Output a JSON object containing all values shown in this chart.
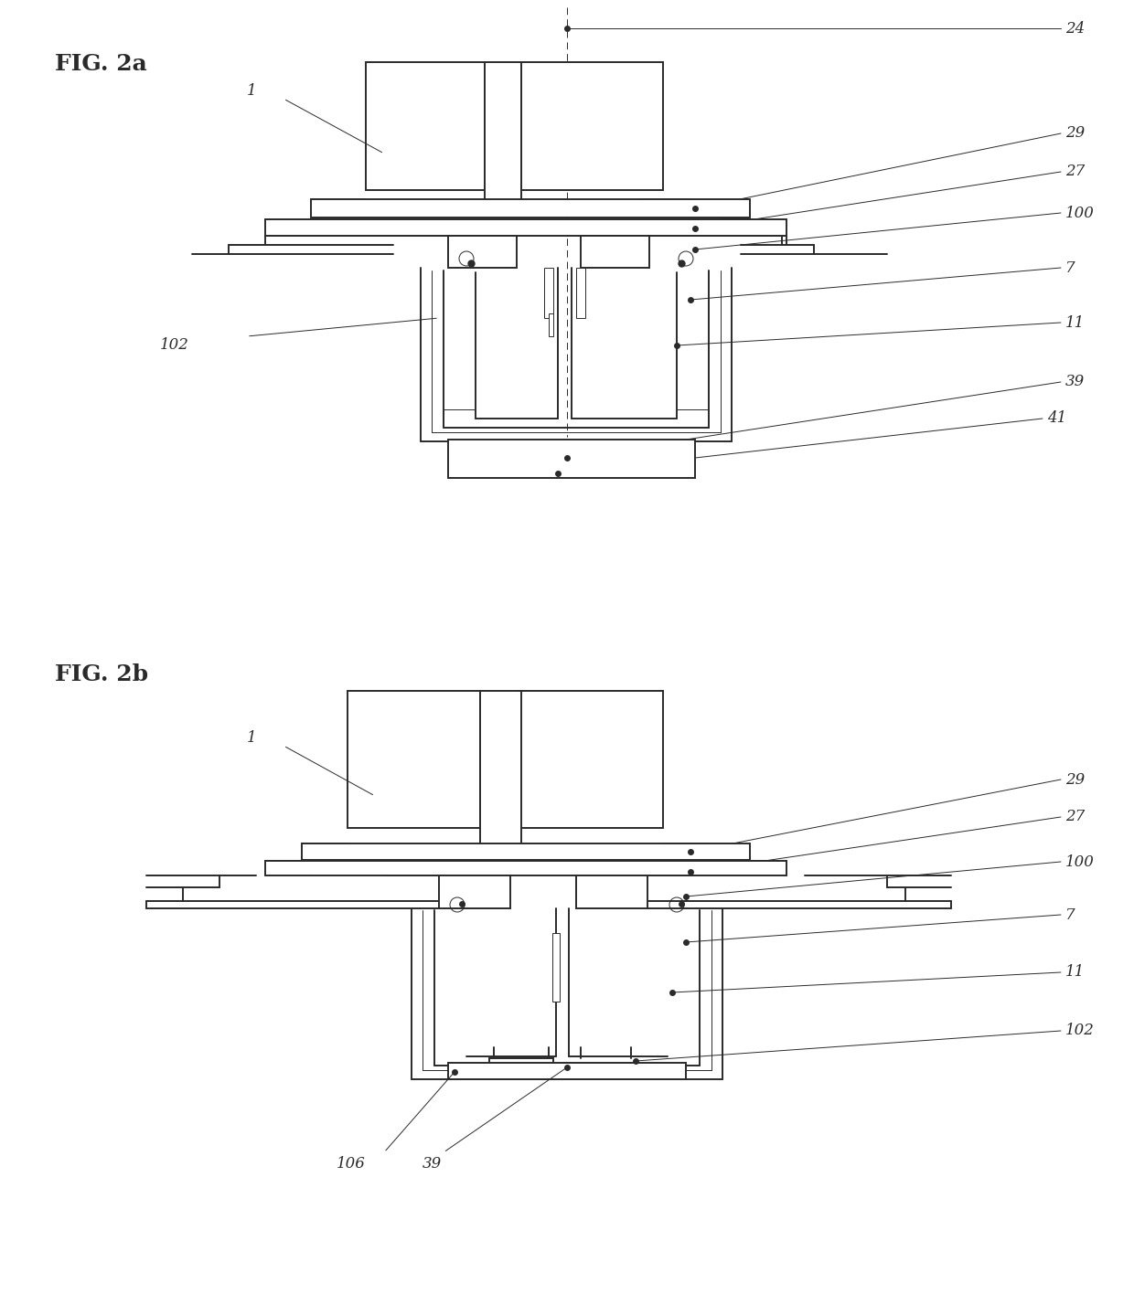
{
  "bg_color": "#ffffff",
  "line_color": "#2a2a2a",
  "lw_main": 1.4,
  "lw_thin": 0.7,
  "lw_hair": 0.5
}
